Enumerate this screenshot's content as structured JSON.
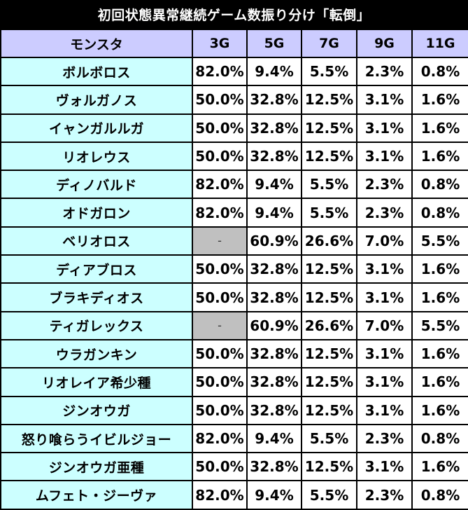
{
  "title": "初回状態異常継続ゲーム数振り分け「転倒」",
  "columns": [
    "モンスタ",
    "3G",
    "5G",
    "7G",
    "9G",
    "11G"
  ],
  "rows": [
    {
      "name": "ボルボロス",
      "values": [
        "82.0%",
        "9.4%",
        "5.5%",
        "2.3%",
        "0.8%"
      ]
    },
    {
      "name": "ヴォルガノス",
      "values": [
        "50.0%",
        "32.8%",
        "12.5%",
        "3.1%",
        "1.6%"
      ]
    },
    {
      "name": "イャンガルルガ",
      "values": [
        "50.0%",
        "32.8%",
        "12.5%",
        "3.1%",
        "1.6%"
      ]
    },
    {
      "name": "リオレウス",
      "values": [
        "50.0%",
        "32.8%",
        "12.5%",
        "3.1%",
        "1.6%"
      ]
    },
    {
      "name": "ディノバルド",
      "values": [
        "82.0%",
        "9.4%",
        "5.5%",
        "2.3%",
        "0.8%"
      ]
    },
    {
      "name": "オドガロン",
      "values": [
        "82.0%",
        "9.4%",
        "5.5%",
        "2.3%",
        "0.8%"
      ]
    },
    {
      "name": "ベリオロス",
      "values": [
        "-",
        "60.9%",
        "26.6%",
        "7.0%",
        "5.5%"
      ]
    },
    {
      "name": "ディアブロス",
      "values": [
        "50.0%",
        "32.8%",
        "12.5%",
        "3.1%",
        "1.6%"
      ]
    },
    {
      "name": "ブラキディオス",
      "values": [
        "50.0%",
        "32.8%",
        "12.5%",
        "3.1%",
        "1.6%"
      ]
    },
    {
      "name": "ティガレックス",
      "values": [
        "-",
        "60.9%",
        "26.6%",
        "7.0%",
        "5.5%"
      ]
    },
    {
      "name": "ウラガンキン",
      "values": [
        "50.0%",
        "32.8%",
        "12.5%",
        "3.1%",
        "1.6%"
      ]
    },
    {
      "name": "リオレイア希少種",
      "values": [
        "50.0%",
        "32.8%",
        "12.5%",
        "3.1%",
        "1.6%"
      ]
    },
    {
      "name": "ジンオウガ",
      "values": [
        "50.0%",
        "32.8%",
        "12.5%",
        "3.1%",
        "1.6%"
      ]
    },
    {
      "name": "怒り喰らうイビルジョー",
      "values": [
        "82.0%",
        "9.4%",
        "5.5%",
        "2.3%",
        "0.8%"
      ]
    },
    {
      "name": "ジンオウガ亜種",
      "values": [
        "50.0%",
        "32.8%",
        "12.5%",
        "3.1%",
        "1.6%"
      ]
    },
    {
      "name": "ムフェト・ジーヴァ",
      "values": [
        "82.0%",
        "9.4%",
        "5.5%",
        "2.3%",
        "0.8%"
      ]
    }
  ]
}
